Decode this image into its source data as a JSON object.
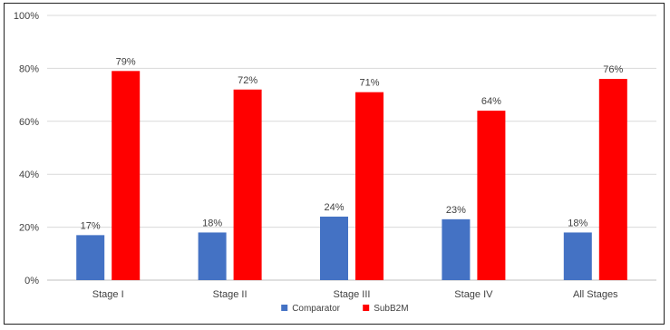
{
  "chart_data": {
    "type": "bar",
    "title": "",
    "xlabel": "",
    "ylabel": "",
    "categories": [
      "Stage I",
      "Stage II",
      "Stage III",
      "Stage IV",
      "All Stages"
    ],
    "series": [
      {
        "name": "Comparator",
        "color": "#4472C4",
        "values": [
          17,
          18,
          24,
          23,
          18
        ],
        "labels": [
          "17%",
          "18%",
          "24%",
          "23%",
          "18%"
        ]
      },
      {
        "name": "SubB2M",
        "color": "#FF0000",
        "values": [
          79,
          72,
          71,
          64,
          76
        ],
        "labels": [
          "79%",
          "72%",
          "71%",
          "64%",
          "76%"
        ]
      }
    ],
    "ylim": [
      0,
      100
    ],
    "yticks": [
      0,
      20,
      40,
      60,
      80,
      100
    ],
    "ytick_labels": [
      "0%",
      "20%",
      "40%",
      "60%",
      "80%",
      "100%"
    ],
    "grid": true,
    "gridline_color": "#D9D9D9",
    "legend_position": "bottom"
  }
}
